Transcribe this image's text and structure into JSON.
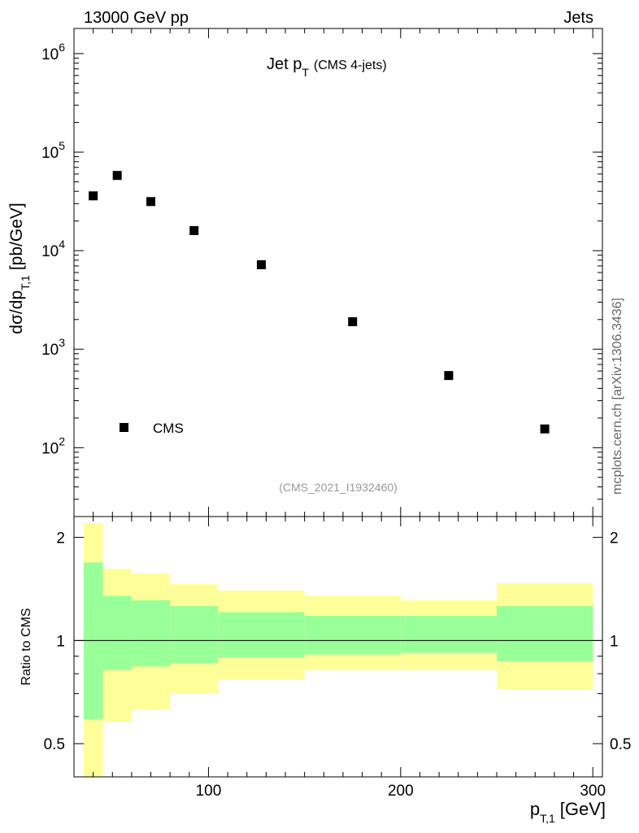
{
  "header": {
    "left": "13000 GeV pp",
    "right": "Jets"
  },
  "side_label": "mcplots.cern.ch [arXiv:1306.3436]",
  "analysis_tag": "(CMS_2021_I1932460)",
  "chart_data": [
    {
      "type": "scatter",
      "title_main": "Jet p",
      "title_sub": "T",
      "title_note": "(CMS 4-jets)",
      "ylabel_main": "dσ/dp",
      "ylabel_sub": "T,1",
      "ylabel_unit": "[pb/GeV]",
      "yscale": "log",
      "ylim": [
        20,
        1800000
      ],
      "xlim": [
        30,
        305
      ],
      "ytick_labels": [
        {
          "value": 100,
          "base": "10",
          "exp": "2"
        },
        {
          "value": 1000,
          "base": "10",
          "exp": "3"
        },
        {
          "value": 10000,
          "base": "10",
          "exp": "4"
        },
        {
          "value": 100000,
          "base": "10",
          "exp": "5"
        },
        {
          "value": 1000000,
          "base": "10",
          "exp": "6"
        }
      ],
      "legend": {
        "label": "CMS",
        "placement": "lower-left"
      },
      "series": [
        {
          "name": "CMS",
          "x": [
            40,
            52.5,
            70,
            92.5,
            127.5,
            175,
            225,
            275
          ],
          "y": [
            36000,
            58000,
            31500,
            16000,
            7200,
            1900,
            540,
            155
          ]
        }
      ]
    },
    {
      "type": "area",
      "ylabel": "Ratio to CMS",
      "yscale": "log",
      "ylim": [
        0.4,
        2.3
      ],
      "xlim": [
        30,
        305
      ],
      "ytick_labels": [
        {
          "value": 0.5,
          "label": "0.5"
        },
        {
          "value": 1,
          "label": "1"
        },
        {
          "value": 2,
          "label": "2"
        }
      ],
      "xtick_labels": [
        {
          "value": 100,
          "label": "100"
        },
        {
          "value": 200,
          "label": "200"
        },
        {
          "value": 300,
          "label": "300"
        }
      ],
      "xlabel_main": "p",
      "xlabel_sub": "T,1",
      "xlabel_unit": "[GeV]",
      "reference_line": 1,
      "bins": [
        {
          "lo": 35,
          "hi": 45,
          "inner": [
            0.59,
            1.69
          ],
          "outer": [
            0.33,
            2.2
          ]
        },
        {
          "lo": 45,
          "hi": 60,
          "inner": [
            0.82,
            1.35
          ],
          "outer": [
            0.58,
            1.62
          ]
        },
        {
          "lo": 60,
          "hi": 80,
          "inner": [
            0.84,
            1.31
          ],
          "outer": [
            0.63,
            1.57
          ]
        },
        {
          "lo": 80,
          "hi": 105,
          "inner": [
            0.86,
            1.26
          ],
          "outer": [
            0.7,
            1.46
          ]
        },
        {
          "lo": 105,
          "hi": 150,
          "inner": [
            0.89,
            1.21
          ],
          "outer": [
            0.77,
            1.4
          ]
        },
        {
          "lo": 150,
          "hi": 200,
          "inner": [
            0.91,
            1.18
          ],
          "outer": [
            0.82,
            1.35
          ]
        },
        {
          "lo": 200,
          "hi": 250,
          "inner": [
            0.92,
            1.18
          ],
          "outer": [
            0.82,
            1.31
          ]
        },
        {
          "lo": 250,
          "hi": 300,
          "inner": [
            0.87,
            1.26
          ],
          "outer": [
            0.72,
            1.47
          ]
        }
      ],
      "colors": {
        "inner": "#99ff99",
        "outer": "#ffff99",
        "line": "#000000"
      }
    }
  ]
}
